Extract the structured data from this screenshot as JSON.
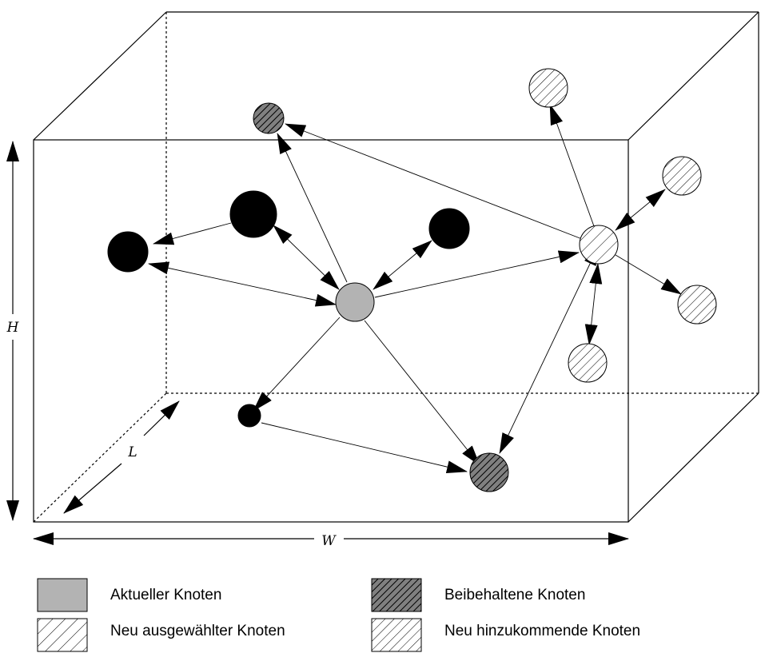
{
  "dimensions": {
    "height_label": "H",
    "width_label": "W",
    "length_label": "L"
  },
  "node_types": {
    "current": {
      "fill": "#b3b3b3"
    },
    "normal": {
      "fill": "#000000"
    },
    "retained": {
      "fill": "#808080",
      "hatch_color": "#000000"
    },
    "selected": {
      "fill": "#ffffff",
      "hatch_color": "#000000"
    },
    "incoming": {
      "fill": "#ffffff",
      "hatch_color": "#000000"
    }
  },
  "legend": [
    {
      "type": "current",
      "label": "Aktueller Knoten"
    },
    {
      "type": "retained",
      "label": "Beibehaltene Knoten"
    },
    {
      "type": "selected",
      "label": "Neu ausgewählter Knoten"
    },
    {
      "type": "incoming",
      "label": "Neu hinzukommende Knoten"
    }
  ]
}
